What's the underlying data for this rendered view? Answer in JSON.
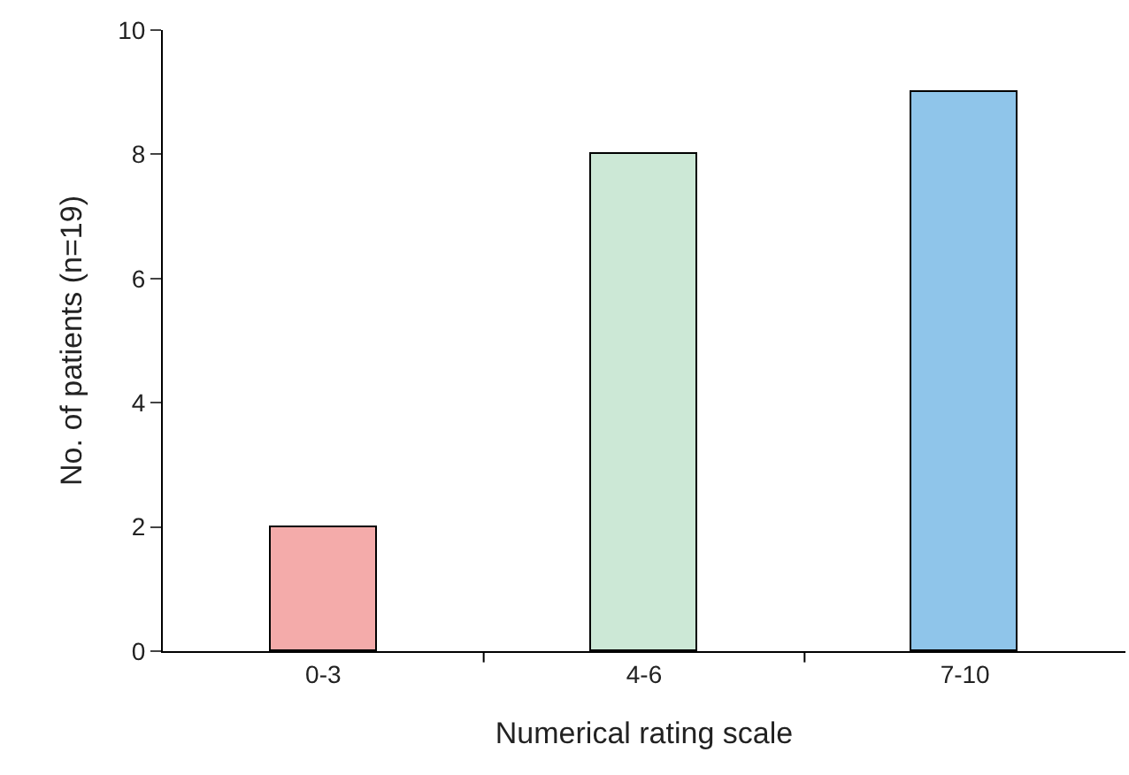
{
  "chart_data": {
    "type": "bar",
    "xlabel": "Numerical rating scale",
    "ylabel": "No. of patients (n=19)",
    "categories": [
      "0-3",
      "4-6",
      "7-10"
    ],
    "values": [
      2,
      8,
      9
    ],
    "colors": [
      "#f4abaa",
      "#cce8d6",
      "#8fc5ea"
    ],
    "ylim": [
      0,
      10
    ],
    "yticks": [
      0,
      2,
      4,
      6,
      8,
      10
    ]
  }
}
